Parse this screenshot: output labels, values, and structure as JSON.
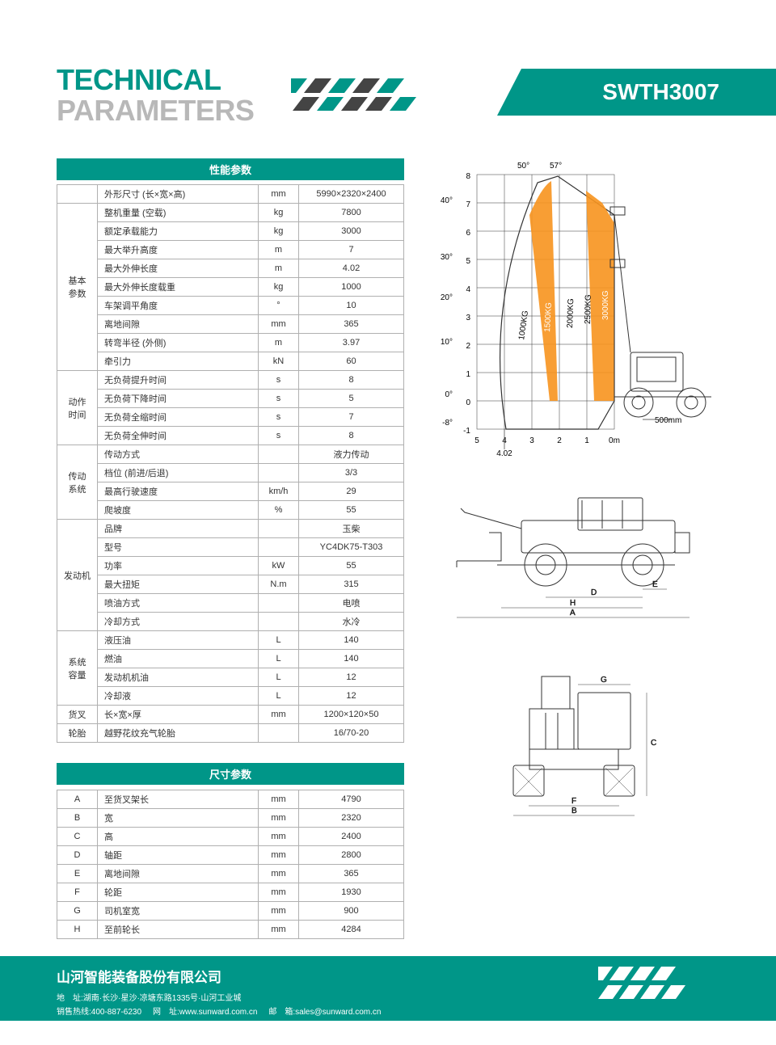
{
  "colors": {
    "teal": "#009688",
    "grey": "#b8b8b8",
    "orange": "#f7941e",
    "border": "#b0b0b0"
  },
  "header": {
    "title": "TECHNICAL",
    "subtitle": "PARAMETERS",
    "model": "SWTH3007"
  },
  "tables": {
    "perf": {
      "title": "性能参数",
      "groups": [
        {
          "label": "基本\n参数",
          "rows": [
            [
              "外形尺寸 (长×宽×高)",
              "mm",
              "5990×2320×2400"
            ],
            [
              "整机重量 (空载)",
              "kg",
              "7800"
            ],
            [
              "额定承载能力",
              "kg",
              "3000"
            ],
            [
              "最大举升高度",
              "m",
              "7"
            ],
            [
              "最大外伸长度",
              "m",
              "4.02"
            ],
            [
              "最大外伸长度载重",
              "kg",
              "1000"
            ],
            [
              "车架调平角度",
              "°",
              "10"
            ],
            [
              "离地间隙",
              "mm",
              "365"
            ],
            [
              "转弯半径 (外侧)",
              "m",
              "3.97"
            ],
            [
              "牵引力",
              "kN",
              "60"
            ]
          ]
        },
        {
          "label": "动作\n时间",
          "rows": [
            [
              "无负荷提升时间",
              "s",
              "8"
            ],
            [
              "无负荷下降时间",
              "s",
              "5"
            ],
            [
              "无负荷全缩时间",
              "s",
              "7"
            ],
            [
              "无负荷全伸时间",
              "s",
              "8"
            ]
          ]
        },
        {
          "label": "传动\n系统",
          "rows": [
            [
              "传动方式",
              "",
              "液力传动"
            ],
            [
              "档位 (前进/后退)",
              "",
              "3/3"
            ],
            [
              "最高行驶速度",
              "km/h",
              "29"
            ],
            [
              "爬坡度",
              "%",
              "55"
            ]
          ]
        },
        {
          "label": "发动机",
          "rows": [
            [
              "品牌",
              "",
              "玉柴"
            ],
            [
              "型号",
              "",
              "YC4DK75-T303"
            ],
            [
              "功率",
              "kW",
              "55"
            ],
            [
              "最大扭矩",
              "N.m",
              "315"
            ],
            [
              "喷油方式",
              "",
              "电喷"
            ],
            [
              "冷却方式",
              "",
              "水冷"
            ]
          ]
        },
        {
          "label": "系统\n容量",
          "rows": [
            [
              "液压油",
              "L",
              "140"
            ],
            [
              "燃油",
              "L",
              "140"
            ],
            [
              "发动机机油",
              "L",
              "12"
            ],
            [
              "冷却液",
              "L",
              "12"
            ]
          ]
        },
        {
          "label": "货叉",
          "rows": [
            [
              "长×宽×厚",
              "mm",
              "1200×120×50"
            ]
          ]
        },
        {
          "label": "轮胎",
          "rows": [
            [
              "越野花纹充气轮胎",
              "",
              "16/70-20"
            ]
          ]
        }
      ]
    },
    "dim": {
      "title": "尺寸参数",
      "rows": [
        [
          "A",
          "至货叉架长",
          "mm",
          "4790"
        ],
        [
          "B",
          "宽",
          "mm",
          "2320"
        ],
        [
          "C",
          "高",
          "mm",
          "2400"
        ],
        [
          "D",
          "轴距",
          "mm",
          "2800"
        ],
        [
          "E",
          "离地间隙",
          "mm",
          "365"
        ],
        [
          "F",
          "轮距",
          "mm",
          "1930"
        ],
        [
          "G",
          "司机室宽",
          "mm",
          "900"
        ],
        [
          "H",
          "至前轮长",
          "mm",
          "4284"
        ]
      ]
    }
  },
  "load_chart": {
    "y_labels": [
      "8",
      "7",
      "6",
      "5",
      "4",
      "3",
      "2",
      "1",
      "0",
      "-1"
    ],
    "x_labels": [
      "5",
      "4",
      "3",
      "2",
      "1",
      "0m"
    ],
    "angles_left": [
      "40°",
      "30°",
      "20°",
      "10°",
      "0°",
      "-8°"
    ],
    "angles_top": [
      "50°",
      "57°"
    ],
    "bands": [
      "1000KG",
      "1500KG",
      "2000KG",
      "2500KG",
      "3000KG"
    ],
    "reach": "4.02",
    "scale": "500mm"
  },
  "side_view": {
    "labels": [
      "E",
      "D",
      "H",
      "A"
    ]
  },
  "front_view": {
    "labels": [
      "G",
      "C",
      "F",
      "B"
    ]
  },
  "footer": {
    "company": "山河智能装备股份有限公司",
    "address_label": "地　址:",
    "address": "湖南·长沙·星沙·凉塘东路1335号·山河工业城",
    "hotline_label": "销售热线:",
    "hotline": "400-887-6230",
    "web_label": "网　址:",
    "web": "www.sunward.com.cn",
    "mail_label": "邮　箱:",
    "mail": "sales@sunward.com.cn"
  }
}
